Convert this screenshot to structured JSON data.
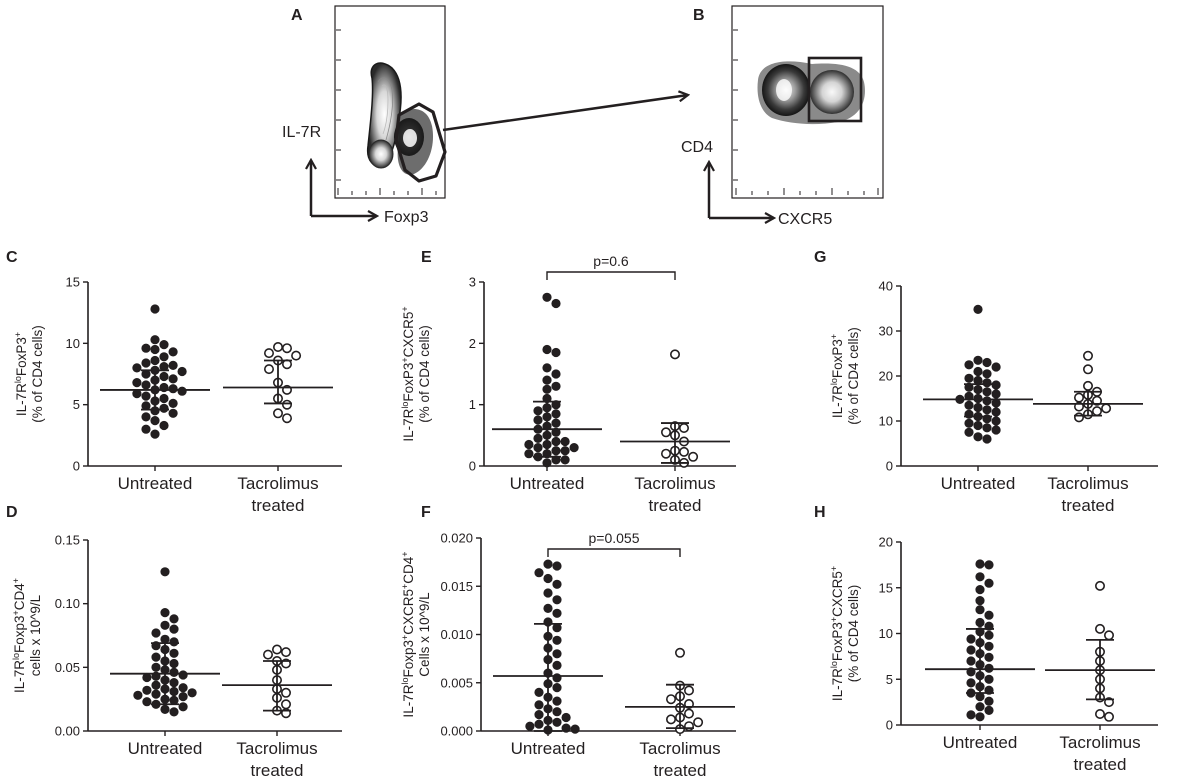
{
  "figure": {
    "panel_letters": [
      "A",
      "B",
      "C",
      "D",
      "E",
      "F",
      "G",
      "H"
    ],
    "flow_cytometry": [
      {
        "panel": "A",
        "y_marker": "IL-7R",
        "x_marker": "Foxp3"
      },
      {
        "panel": "B",
        "y_marker": "CD4",
        "x_marker": "CXCR5"
      }
    ]
  },
  "chart_data": [
    {
      "panel": "C",
      "type": "scatter",
      "categories": [
        "Untreated",
        "Tacrolimus treated"
      ],
      "ylabel_main": "IL-7R",
      "ylabel_sup": "lo",
      "ylabel_rest": "FoxP3",
      "ylabel_sup2": "+",
      "ylabel_line2": "(% of CD4 cells)",
      "ylim": [
        0,
        15
      ],
      "yticks": [
        "0",
        "5",
        "10",
        "15"
      ],
      "ytick_values": [
        0,
        5,
        10,
        15
      ],
      "series": [
        {
          "name": "Untreated",
          "fill": "filled",
          "mean": 6.2,
          "sd_low": 4.6,
          "sd_high": 7.8,
          "values": [
            12.8,
            10.3,
            9.9,
            9.6,
            9.5,
            9.3,
            8.9,
            8.6,
            8.4,
            8.2,
            8.1,
            8.0,
            7.8,
            7.7,
            7.5,
            7.3,
            7.1,
            7.0,
            6.8,
            6.6,
            6.4,
            6.3,
            6.2,
            6.1,
            5.9,
            5.7,
            5.5,
            5.3,
            5.1,
            4.9,
            4.7,
            4.5,
            4.3,
            4.0,
            3.7,
            3.3,
            3.0,
            2.6
          ]
        },
        {
          "name": "Tacrolimus treated",
          "fill": "open",
          "mean": 6.4,
          "sd_low": 5.1,
          "sd_high": 8.6,
          "values": [
            9.7,
            9.6,
            9.2,
            9.0,
            8.6,
            8.3,
            7.9,
            6.8,
            6.2,
            5.5,
            5.0,
            4.3,
            3.9
          ]
        }
      ]
    },
    {
      "panel": "D",
      "type": "scatter",
      "categories": [
        "Untreated",
        "Tacrolimus treated"
      ],
      "ylabel_main": "IL-7R",
      "ylabel_sup": "lo",
      "ylabel_rest": "Foxp3",
      "ylabel_sup2": "+",
      "ylabel_rest2": "CD4",
      "ylabel_sup3": "+",
      "ylabel_line2": "cells x 10^9/L",
      "ylim": [
        0,
        0.15
      ],
      "yticks": [
        "0.00",
        "0.05",
        "0.10",
        "0.15"
      ],
      "ytick_values": [
        0,
        0.05,
        0.1,
        0.15
      ],
      "series": [
        {
          "name": "Untreated",
          "fill": "filled",
          "mean": 0.045,
          "sd_low": 0.021,
          "sd_high": 0.069,
          "values": [
            0.125,
            0.093,
            0.088,
            0.083,
            0.08,
            0.077,
            0.072,
            0.07,
            0.067,
            0.064,
            0.061,
            0.058,
            0.055,
            0.053,
            0.05,
            0.048,
            0.046,
            0.044,
            0.043,
            0.042,
            0.04,
            0.038,
            0.036,
            0.034,
            0.033,
            0.032,
            0.031,
            0.03,
            0.029,
            0.028,
            0.027,
            0.025,
            0.024,
            0.023,
            0.021,
            0.019,
            0.017,
            0.015
          ]
        },
        {
          "name": "Tacrolimus treated",
          "fill": "open",
          "mean": 0.036,
          "sd_low": 0.016,
          "sd_high": 0.055,
          "values": [
            0.064,
            0.062,
            0.06,
            0.055,
            0.053,
            0.048,
            0.04,
            0.033,
            0.03,
            0.026,
            0.021,
            0.016,
            0.014
          ]
        }
      ]
    },
    {
      "panel": "E",
      "type": "scatter",
      "categories": [
        "Untreated",
        "Tacrolimus treated"
      ],
      "ylabel_main": "IL-7R",
      "ylabel_sup": "lo",
      "ylabel_rest": "FoxP3",
      "ylabel_sup2": "+",
      "ylabel_rest2": "CXCR5",
      "ylabel_sup3": "+",
      "ylabel_line2": "(% of CD4 cells)",
      "ylim": [
        0,
        3
      ],
      "yticks": [
        "0",
        "1",
        "2",
        "3"
      ],
      "ytick_values": [
        0,
        1,
        2,
        3
      ],
      "annotation": "p=0.6",
      "series": [
        {
          "name": "Untreated",
          "fill": "filled",
          "mean": 0.6,
          "sd_low": 0.15,
          "sd_high": 1.05,
          "values": [
            2.75,
            2.65,
            1.9,
            1.85,
            1.6,
            1.5,
            1.4,
            1.3,
            1.25,
            1.1,
            1.0,
            0.95,
            0.9,
            0.85,
            0.8,
            0.75,
            0.7,
            0.65,
            0.6,
            0.55,
            0.5,
            0.45,
            0.4,
            0.4,
            0.35,
            0.35,
            0.3,
            0.3,
            0.25,
            0.25,
            0.2,
            0.2,
            0.15,
            0.1,
            0.1,
            0.05
          ]
        },
        {
          "name": "Tacrolimus treated",
          "fill": "open",
          "mean": 0.4,
          "sd_low": 0.05,
          "sd_high": 0.7,
          "values": [
            1.82,
            0.65,
            0.62,
            0.55,
            0.5,
            0.4,
            0.25,
            0.23,
            0.2,
            0.15,
            0.1,
            0.05
          ]
        }
      ]
    },
    {
      "panel": "F",
      "type": "scatter",
      "categories": [
        "Untreated",
        "Tacrolimus treated"
      ],
      "ylabel_main": "IL-7R",
      "ylabel_sup": "lo",
      "ylabel_rest": "Foxp3",
      "ylabel_sup2": "+",
      "ylabel_rest2": "CXCR5",
      "ylabel_sup3": "+",
      "ylabel_rest3": "CD4",
      "ylabel_sup4": "+",
      "ylabel_line2": "Cells x 10^9/L",
      "ylim": [
        0,
        0.02
      ],
      "yticks": [
        "0.000",
        "0.005",
        "0.010",
        "0.015",
        "0.020"
      ],
      "ytick_values": [
        0,
        0.005,
        0.01,
        0.015,
        0.02
      ],
      "annotation": "p=0.055",
      "series": [
        {
          "name": "Untreated",
          "fill": "filled",
          "mean": 0.0057,
          "sd_low": 0.0,
          "sd_high": 0.0111,
          "values": [
            0.0173,
            0.0171,
            0.0164,
            0.0158,
            0.0152,
            0.0143,
            0.0136,
            0.0127,
            0.0122,
            0.0113,
            0.0107,
            0.0098,
            0.0094,
            0.0086,
            0.008,
            0.0074,
            0.0068,
            0.006,
            0.0055,
            0.0049,
            0.0045,
            0.004,
            0.0035,
            0.0031,
            0.0027,
            0.0023,
            0.002,
            0.0017,
            0.0014,
            0.0011,
            0.0009,
            0.0007,
            0.0005,
            0.0003,
            0.0002,
            0.0001
          ]
        },
        {
          "name": "Tacrolimus treated",
          "fill": "open",
          "mean": 0.0025,
          "sd_low": 0.0003,
          "sd_high": 0.0048,
          "values": [
            0.0081,
            0.0047,
            0.0042,
            0.0036,
            0.0033,
            0.0028,
            0.0024,
            0.0018,
            0.0014,
            0.0012,
            0.0009,
            0.0005,
            0.0002
          ]
        }
      ]
    },
    {
      "panel": "G",
      "type": "scatter",
      "categories": [
        "Untreated",
        "Tacrolimus treated"
      ],
      "ylabel_main": "IL-7R",
      "ylabel_sup": "lo",
      "ylabel_rest": "FoxP3",
      "ylabel_sup2": "+",
      "ylabel_line2": "(% of CD4 cells)",
      "ylim": [
        0,
        40
      ],
      "yticks": [
        "0",
        "10",
        "20",
        "30",
        "40"
      ],
      "ytick_values": [
        0,
        10,
        20,
        30,
        40
      ],
      "series": [
        {
          "name": "Untreated",
          "fill": "filled",
          "mean": 14.8,
          "sd_low": 11.0,
          "sd_high": 18.2,
          "values": [
            34.8,
            23.5,
            23.0,
            22.5,
            22.0,
            21.0,
            20.5,
            19.5,
            19.0,
            18.5,
            18.0,
            17.5,
            17.0,
            16.5,
            16.0,
            15.5,
            15.0,
            14.8,
            14.5,
            14.0,
            13.5,
            13.0,
            12.5,
            12.0,
            11.5,
            11.0,
            10.5,
            10.0,
            9.5,
            9.0,
            8.5,
            8.0,
            7.5,
            6.5,
            6.0
          ]
        },
        {
          "name": "Tacrolimus treated",
          "fill": "open",
          "mean": 13.8,
          "sd_low": 11.2,
          "sd_high": 16.5,
          "values": [
            24.5,
            21.5,
            17.8,
            16.5,
            15.8,
            15.2,
            14.5,
            13.8,
            13.2,
            12.8,
            12.2,
            11.5,
            10.8
          ]
        }
      ]
    },
    {
      "panel": "H",
      "type": "scatter",
      "categories": [
        "Untreated",
        "Tacrolimus treated"
      ],
      "ylabel_main": "IL-7R",
      "ylabel_sup": "lo",
      "ylabel_rest": "FoxP3",
      "ylabel_sup2": "+",
      "ylabel_rest2": "CXCR5",
      "ylabel_sup3": "+",
      "ylabel_line2": "(% of CD4 cells)",
      "ylim": [
        0,
        20
      ],
      "yticks": [
        "0",
        "5",
        "10",
        "15",
        "20"
      ],
      "ytick_values": [
        0,
        5,
        10,
        15,
        20
      ],
      "series": [
        {
          "name": "Untreated",
          "fill": "filled",
          "mean": 6.1,
          "sd_low": 3.5,
          "sd_high": 10.5,
          "values": [
            17.6,
            17.5,
            16.2,
            15.5,
            14.8,
            13.6,
            12.6,
            12.0,
            11.2,
            10.8,
            10.2,
            9.8,
            9.4,
            9.0,
            8.6,
            8.2,
            7.8,
            7.4,
            7.0,
            6.6,
            6.2,
            5.8,
            5.4,
            5.0,
            4.6,
            4.2,
            3.8,
            3.5,
            3.1,
            2.6,
            2.0,
            1.6,
            1.1,
            0.9
          ]
        },
        {
          "name": "Tacrolimus treated",
          "fill": "open",
          "mean": 6.0,
          "sd_low": 2.8,
          "sd_high": 9.3,
          "values": [
            15.2,
            10.5,
            9.8,
            8.0,
            7.0,
            6.0,
            5.0,
            4.0,
            3.0,
            2.5,
            1.2,
            0.9
          ]
        }
      ]
    }
  ]
}
